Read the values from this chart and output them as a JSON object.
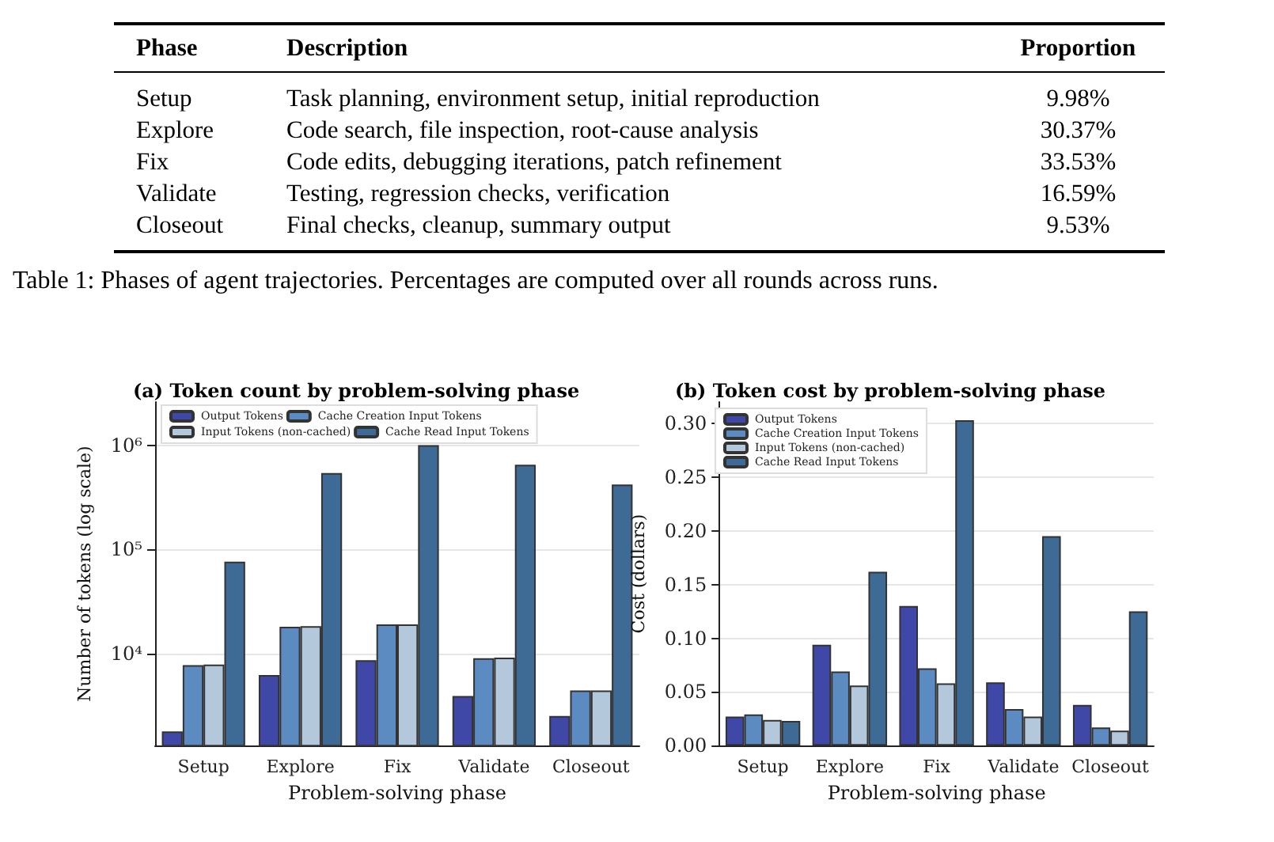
{
  "chart_data": [
    {
      "type": "other",
      "title": "Table 1: Phases of agent trajectories.  Percentages are computed over all rounds across runs.",
      "categories": [
        "Setup",
        "Explore",
        "Fix",
        "Validate",
        "Closeout"
      ],
      "value_labels": [
        "9.98%",
        "30.37%",
        "33.53%",
        "16.59%",
        "9.53%"
      ],
      "annotations": [
        "Phase",
        "Description",
        "Proportion",
        "Task planning, environment setup, initial reproduction",
        "Code search, file inspection, root-cause analysis",
        "Code edits, debugging iterations, patch refinement",
        "Testing, regression checks, verification",
        "Final checks, cleanup, summary output"
      ]
    },
    {
      "type": "bar",
      "title": "(a) Token count by problem-solving phase",
      "xlabel": "Problem-solving phase",
      "ylabel": "Number of tokens (log scale)",
      "categories": [
        "Setup",
        "Explore",
        "Fix",
        "Validate",
        "Closeout"
      ],
      "series": [
        {
          "name": "Output Tokens",
          "color": "#3f48a6",
          "values": [
            1780,
            6200,
            8600,
            3900,
            2500
          ]
        },
        {
          "name": "Cache Creation Input Tokens",
          "color": "#5b8bc0",
          "values": [
            7700,
            18000,
            19000,
            9000,
            4400
          ]
        },
        {
          "name": "Input Tokens (non-cached)",
          "color": "#b4c8dc",
          "values": [
            7800,
            18300,
            19000,
            9100,
            4400
          ]
        },
        {
          "name": "Cache Read Input Tokens",
          "color": "#3e6a96",
          "values": [
            76000,
            540000,
            1000000,
            650000,
            420000
          ]
        }
      ],
      "log": "y",
      "ylim": [
        1300,
        2600000
      ],
      "yticks": [
        {
          "value": 10000,
          "label": "10⁴"
        },
        {
          "value": 100000,
          "label": "10⁵"
        },
        {
          "value": 1000000,
          "label": "10⁶"
        }
      ],
      "grid": "y",
      "legend": "top"
    },
    {
      "type": "bar",
      "title": "(b) Token cost by problem-solving phase",
      "xlabel": "Problem-solving phase",
      "ylabel": "Cost (dollars)",
      "categories": [
        "Setup",
        "Explore",
        "Fix",
        "Validate",
        "Closeout"
      ],
      "series": [
        {
          "name": "Output Tokens",
          "color": "#3f48a6",
          "values": [
            0.027,
            0.094,
            0.13,
            0.059,
            0.038
          ]
        },
        {
          "name": "Cache Creation Input Tokens",
          "color": "#5b8bc0",
          "values": [
            0.029,
            0.069,
            0.072,
            0.034,
            0.017
          ]
        },
        {
          "name": "Input Tokens (non-cached)",
          "color": "#b4c8dc",
          "values": [
            0.024,
            0.056,
            0.058,
            0.027,
            0.014
          ]
        },
        {
          "name": "Cache Read Input Tokens",
          "color": "#3e6a96",
          "values": [
            0.023,
            0.162,
            0.303,
            0.195,
            0.125
          ]
        }
      ],
      "ylim": [
        0,
        0.32
      ],
      "yticks": [
        {
          "value": 0,
          "label": "0.00"
        },
        {
          "value": 0.05,
          "label": "0.05"
        },
        {
          "value": 0.1,
          "label": "0.10"
        },
        {
          "value": 0.15,
          "label": "0.15"
        },
        {
          "value": 0.2,
          "label": "0.20"
        },
        {
          "value": 0.25,
          "label": "0.25"
        },
        {
          "value": 0.3,
          "label": "0.30"
        }
      ],
      "grid": "y",
      "legend": "top left"
    }
  ]
}
